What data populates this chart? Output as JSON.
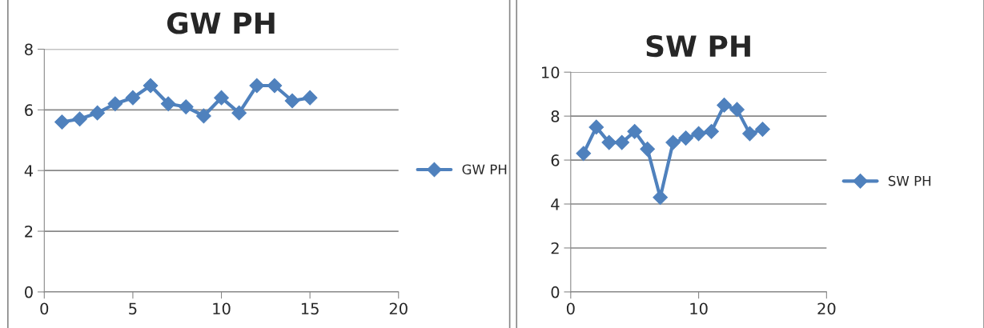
{
  "chart_data": [
    {
      "type": "line",
      "title": "GW PH",
      "x": [
        1,
        2,
        3,
        4,
        5,
        6,
        7,
        8,
        9,
        10,
        11,
        12,
        13,
        14,
        15
      ],
      "series": [
        {
          "name": "GW PH",
          "color": "#4f81bd",
          "values": [
            5.6,
            5.7,
            5.9,
            6.2,
            6.4,
            6.8,
            6.2,
            6.1,
            5.8,
            6.4,
            5.9,
            6.8,
            6.8,
            6.3,
            6.4
          ]
        }
      ],
      "xlim": [
        0,
        20
      ],
      "xticks": [
        0,
        5,
        10,
        15,
        20
      ],
      "ylim": [
        0,
        8
      ],
      "yticks": [
        0,
        2,
        4,
        6,
        8
      ],
      "grid": "y",
      "legend": "right",
      "marker": "diamond",
      "line_style": "solid"
    },
    {
      "type": "line",
      "title": "SW PH",
      "x": [
        1,
        2,
        3,
        4,
        5,
        6,
        7,
        8,
        9,
        10,
        11,
        12,
        13,
        14,
        15
      ],
      "series": [
        {
          "name": "SW PH",
          "color": "#4f81bd",
          "values": [
            6.3,
            7.5,
            6.8,
            6.8,
            7.3,
            6.5,
            4.3,
            6.8,
            7.0,
            7.2,
            7.3,
            8.5,
            8.3,
            7.2,
            7.4
          ]
        }
      ],
      "xlim": [
        0,
        20
      ],
      "xticks": [
        0,
        10,
        20
      ],
      "ylim": [
        0,
        10
      ],
      "yticks": [
        0,
        2,
        4,
        6,
        8,
        10
      ],
      "grid": "y",
      "legend": "right",
      "marker": "diamond",
      "line_style": "solid"
    }
  ]
}
